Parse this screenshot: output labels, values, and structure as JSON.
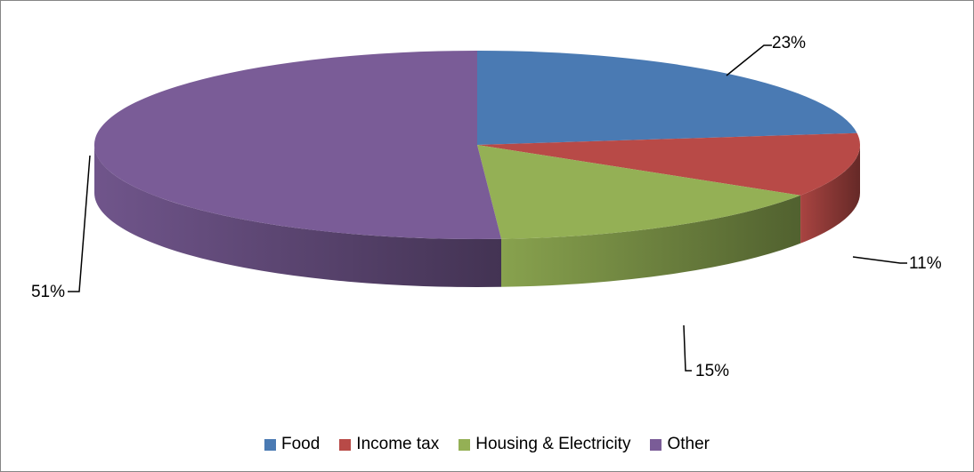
{
  "chart_data": {
    "type": "pie",
    "style": "3d",
    "categories": [
      "Food",
      "Income tax",
      "Housing & Electricity",
      "Other"
    ],
    "values": [
      23,
      11,
      15,
      51
    ],
    "data_labels": [
      "23%",
      "11%",
      "15%",
      "51%"
    ],
    "colors": [
      "#4a7ab3",
      "#b84a47",
      "#94b055",
      "#7a5c97"
    ],
    "title": "",
    "legend_position": "bottom"
  },
  "legend": {
    "items": [
      {
        "label": "Food",
        "color": "#4a7ab3"
      },
      {
        "label": "Income tax",
        "color": "#b84a47"
      },
      {
        "label": "Housing & Electricity",
        "color": "#94b055"
      },
      {
        "label": "Other",
        "color": "#7a5c97"
      }
    ]
  }
}
